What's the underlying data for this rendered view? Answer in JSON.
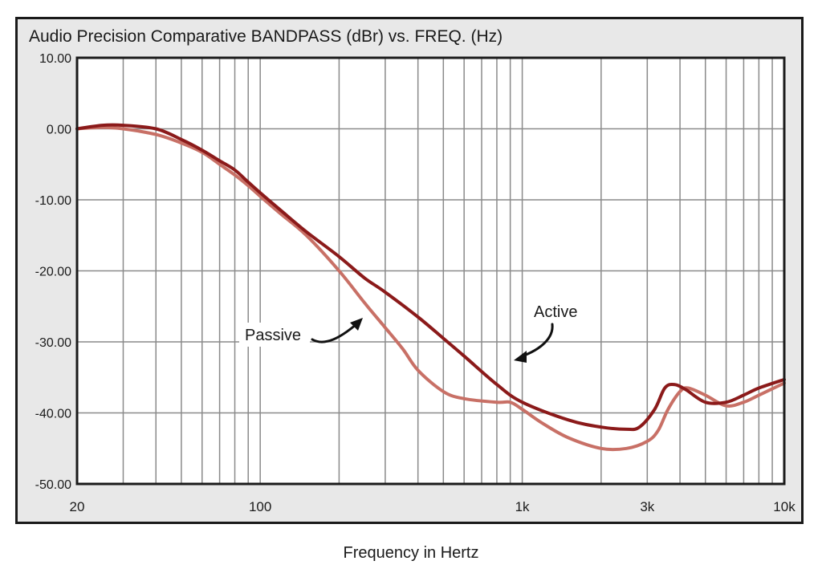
{
  "chart_data": {
    "type": "line",
    "title": "Audio Precision Comparative BANDPASS (dBr) vs. FREQ. (Hz)",
    "xlabel": "Frequency in Hertz",
    "ylabel": "",
    "xscale": "log",
    "xlim": [
      20,
      10000
    ],
    "ylim": [
      -50,
      10
    ],
    "y_ticks": [
      {
        "value": 10,
        "label": "10.00"
      },
      {
        "value": 0,
        "label": "0.00"
      },
      {
        "value": -10,
        "label": "-10.00"
      },
      {
        "value": -20,
        "label": "-20.00"
      },
      {
        "value": -30,
        "label": "-30.00"
      },
      {
        "value": -40,
        "label": "-40.00"
      },
      {
        "value": -50,
        "label": "-50.00"
      }
    ],
    "x_ticks": [
      {
        "value": 20,
        "label": "20"
      },
      {
        "value": 100,
        "label": "100"
      },
      {
        "value": 1000,
        "label": "1k"
      },
      {
        "value": 3000,
        "label": "3k"
      },
      {
        "value": 10000,
        "label": "10k"
      }
    ],
    "grid": true,
    "series": [
      {
        "name": "Active",
        "color": "#8b1a1a",
        "x": [
          20,
          25,
          30,
          40,
          50,
          60,
          70,
          80,
          90,
          100,
          120,
          150,
          200,
          250,
          300,
          400,
          500,
          600,
          800,
          1000,
          1500,
          2000,
          2500,
          2800,
          3200,
          3500,
          3800,
          4200,
          5000,
          6000,
          7000,
          8000,
          10000
        ],
        "y": [
          0,
          0.5,
          0.5,
          0,
          -1.5,
          -3,
          -4.5,
          -5.8,
          -7.5,
          -9,
          -11.5,
          -14.5,
          -18,
          -21,
          -23,
          -26.5,
          -29.5,
          -32,
          -36,
          -38.5,
          -41,
          -42,
          -42.3,
          -42,
          -39.5,
          -36.5,
          -36,
          -36.7,
          -38.5,
          -38.5,
          -37.5,
          -36.5,
          -35.3
        ]
      },
      {
        "name": "Passive",
        "color": "#c87066",
        "x": [
          20,
          25,
          30,
          40,
          50,
          60,
          70,
          80,
          90,
          100,
          120,
          150,
          200,
          250,
          300,
          350,
          400,
          500,
          600,
          800,
          900,
          1000,
          1200,
          1500,
          2000,
          2500,
          3000,
          3300,
          3600,
          4000,
          4300,
          5000,
          6000,
          7000,
          8000,
          10000
        ],
        "y": [
          0,
          0.2,
          0,
          -0.8,
          -2,
          -3.3,
          -5,
          -6.5,
          -8,
          -9.5,
          -12,
          -15,
          -20,
          -24.5,
          -28,
          -31,
          -34,
          -37,
          -38,
          -38.5,
          -38.5,
          -39.5,
          -41.5,
          -43.5,
          -45,
          -45,
          -44,
          -42.5,
          -39.5,
          -37,
          -36.5,
          -37.5,
          -39,
          -38.5,
          -37.5,
          -35.8
        ]
      }
    ],
    "annotations": [
      {
        "text": "Passive",
        "target_series": "Passive"
      },
      {
        "text": "Active",
        "target_series": "Active"
      }
    ]
  }
}
